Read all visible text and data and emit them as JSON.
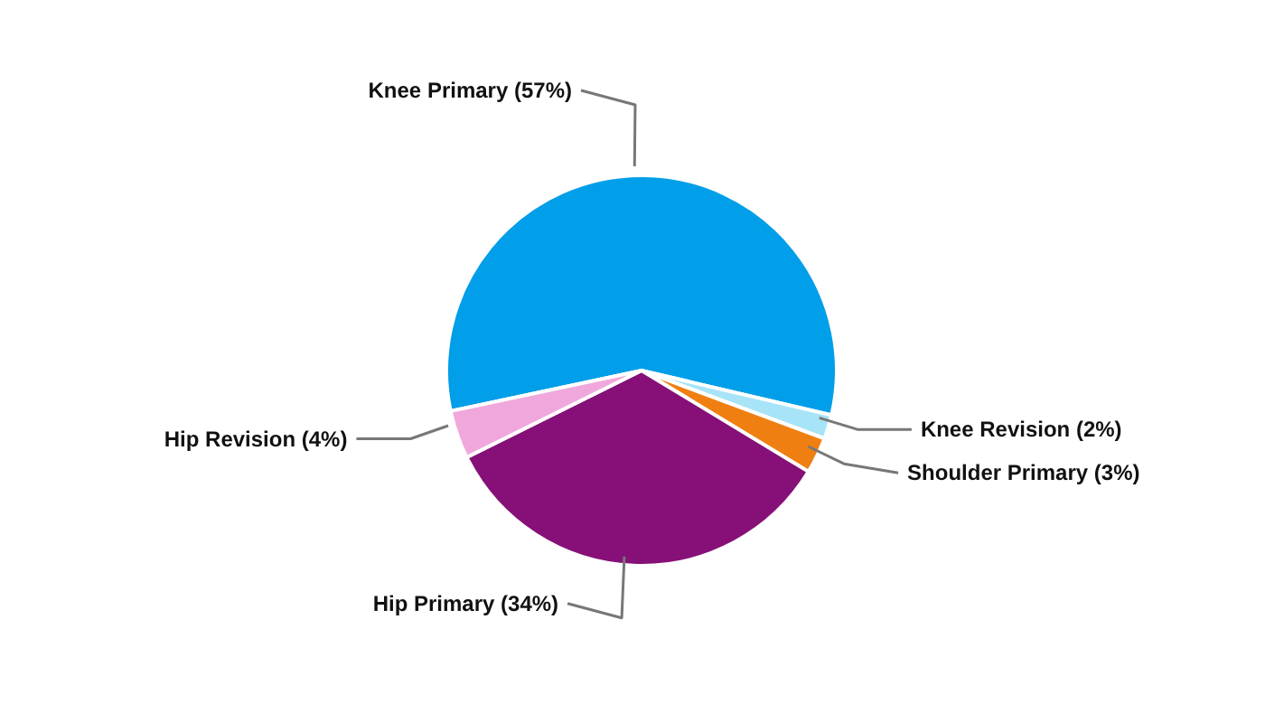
{
  "chart_data": {
    "type": "pie",
    "categories": [
      "Knee Primary",
      "Knee Revision",
      "Shoulder Primary",
      "Hip Primary",
      "Hip Revision"
    ],
    "values": [
      57,
      2,
      3,
      34,
      4
    ],
    "value_labels": [
      "(57%)",
      "(2%)",
      "(3%)",
      "(34%)",
      "(4%)"
    ],
    "colors": [
      "#019ee9",
      "#a8e4f8",
      "#f07f12",
      "#861078",
      "#f0a8dc"
    ]
  }
}
